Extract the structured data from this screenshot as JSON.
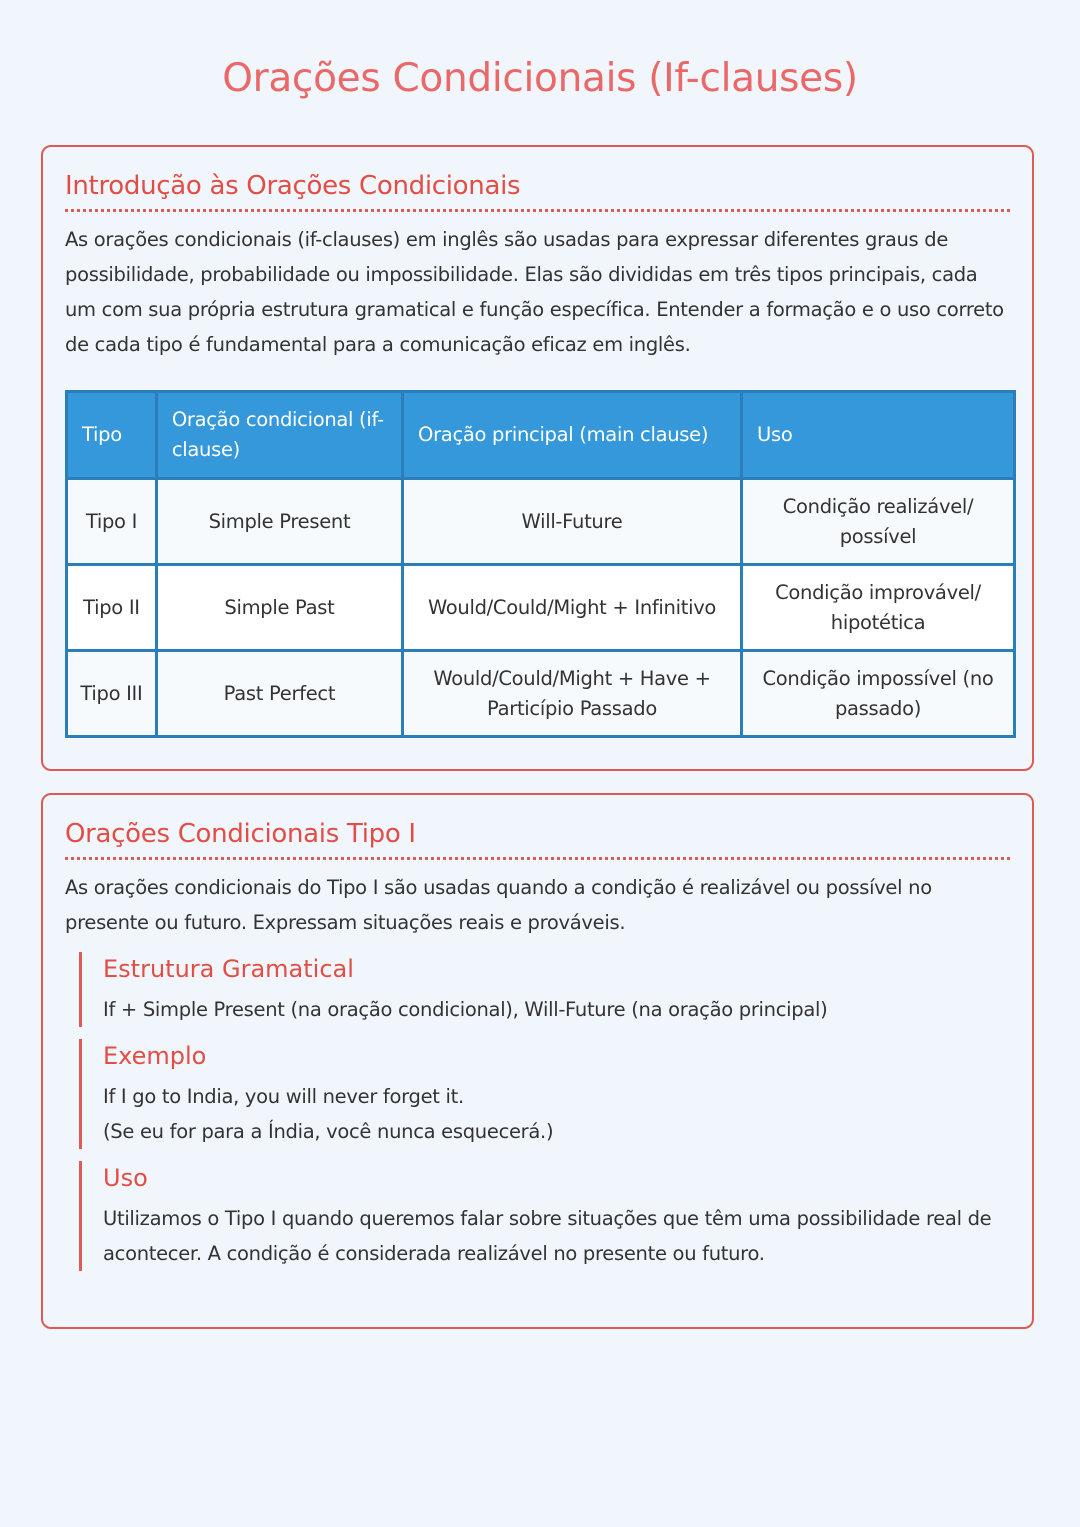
{
  "title": "Orações Condicionais (If-clauses)",
  "intro": {
    "heading": "Introdução às Orações Condicionais",
    "text": "As orações condicionais (if-clauses) em inglês são usadas para expressar diferentes graus de possibilidade, probabilidade ou impossibilidade. Elas são divididas em três tipos principais, cada um com sua própria estrutura gramatical e função específica. Entender a formação e o uso correto de cada tipo é fundamental para a comunicação eficaz em inglês.",
    "table": {
      "headers": [
        "Tipo",
        "Oração condicional (if-clause)",
        "Oração principal (main clause)",
        "Uso"
      ],
      "rows": [
        [
          "Tipo I",
          "Simple Present",
          "Will-Future",
          "Condição realizável/ possível"
        ],
        [
          "Tipo II",
          "Simple Past",
          "Would/Could/Might + Infinitivo",
          "Condição improvável/ hipotética"
        ],
        [
          "Tipo III",
          "Past Perfect",
          "Would/Could/Might + Have + Particípio Passado",
          "Condição impossível (no passado)"
        ]
      ]
    }
  },
  "tipo1": {
    "heading": "Orações Condicionais Tipo I",
    "text": "As orações condicionais do Tipo I são usadas quando a condição é realizável ou possível no presente ou futuro. Expressam situações reais e prováveis.",
    "sections": [
      {
        "heading": "Estrutura Gramatical",
        "lines": [
          "If + Simple Present (na oração condicional), Will-Future (na oração principal)"
        ]
      },
      {
        "heading": "Exemplo",
        "lines": [
          "If I go to India, you will never forget it.",
          "(Se eu for para a Índia, você nunca esquecerá.)"
        ]
      },
      {
        "heading": "Uso",
        "lines": [
          "Utilizamos o Tipo I quando queremos falar sobre situações que têm uma possibilidade real de acontecer. A condição é considerada realizável no presente ou futuro."
        ]
      }
    ]
  }
}
